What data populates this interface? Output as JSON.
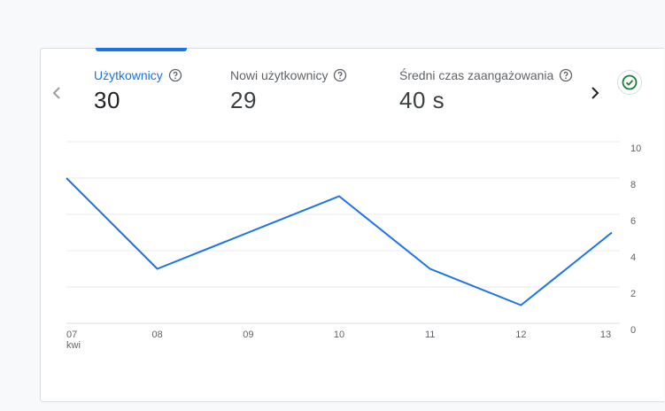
{
  "metrics": [
    {
      "label": "Użytkownicy",
      "value": "30",
      "active": true
    },
    {
      "label": "Nowi użytkownicy",
      "value": "29",
      "active": false
    },
    {
      "label": "Średni czas zaangażowania",
      "value": "40 s",
      "active": false
    }
  ],
  "nav": {
    "prev_icon": "chevron-left-icon",
    "next_icon": "chevron-right-icon"
  },
  "status": {
    "icon": "check-circle-icon",
    "color": "#188038"
  },
  "colors": {
    "accent": "#1a73e8",
    "line": "#1a73e8",
    "grid": "#e8eaed"
  },
  "chart_data": {
    "type": "line",
    "categories": [
      "07",
      "08",
      "09",
      "10",
      "11",
      "12",
      "13"
    ],
    "x_sublabel_first": "kwi",
    "series": [
      {
        "values": [
          8,
          3,
          5,
          7,
          3,
          1,
          5
        ]
      }
    ],
    "y_ticks": [
      "0",
      "2",
      "4",
      "6",
      "8",
      "10"
    ],
    "ylim": [
      0,
      10
    ],
    "y_axis_position": "right",
    "grid": true,
    "title": "",
    "xlabel": "",
    "ylabel": ""
  }
}
